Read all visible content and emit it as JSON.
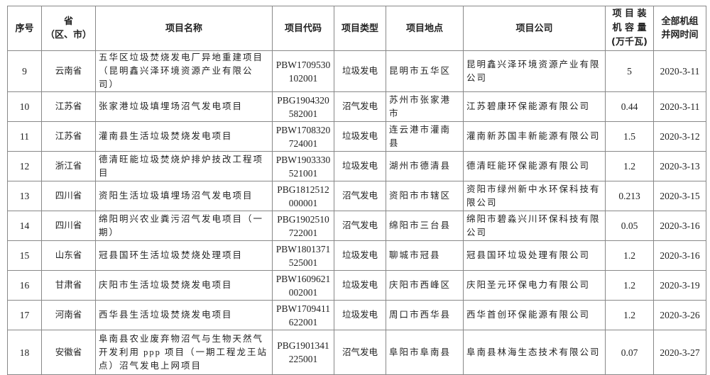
{
  "table": {
    "headers": [
      "序号",
      "省（区、市）",
      "项目名称",
      "项目代码",
      "项目类型",
      "项目地点",
      "项目公司",
      "项目装机容量(万千瓦)",
      "全部机组并网时间"
    ],
    "header_lines": {
      "province": [
        "省",
        "（区、市）"
      ],
      "capacity": [
        "项 目 装",
        "机 容 量",
        "(万千瓦)"
      ],
      "time": [
        "全部机组",
        "并网时间"
      ]
    },
    "rows": [
      {
        "no": "9",
        "province": "云南省",
        "name": "五华区垃圾焚烧发电厂异地重建项目（昆明鑫兴泽环境资源产业有限公司）",
        "code": "PBW1709530102001",
        "type": "垃圾发电",
        "location": "昆明市五华区",
        "company": "昆明鑫兴泽环境资源产业有限公司",
        "capacity": "5",
        "time": "2020-3-11"
      },
      {
        "no": "10",
        "province": "江苏省",
        "name": "张家港垃圾填埋场沼气发电项目",
        "code": "PBG1904320582001",
        "type": "沼气发电",
        "location": "苏州市张家港市",
        "company": "江苏碧康环保能源有限公司",
        "capacity": "0.44",
        "time": "2020-3-11"
      },
      {
        "no": "11",
        "province": "江苏省",
        "name": "灌南县生活垃圾焚烧发电项目",
        "code": "PBW1708320724001",
        "type": "垃圾发电",
        "location": "连云港市灌南县",
        "company": "灌南新苏国丰新能源有限公司",
        "capacity": "1.5",
        "time": "2020-3-12"
      },
      {
        "no": "12",
        "province": "浙江省",
        "name": "德清旺能垃圾焚烧炉排炉技改工程项目",
        "code": "PBW1903330521001",
        "type": "垃圾发电",
        "location": "湖州市德清县",
        "company": "德清旺能环保能源有限公司",
        "capacity": "1.2",
        "time": "2020-3-13"
      },
      {
        "no": "13",
        "province": "四川省",
        "name": "资阳生活垃圾填埋场沼气发电项目",
        "code": "PBG1812512000001",
        "type": "沼气发电",
        "location": "资阳市市辖区",
        "company": "资阳市绿州新中水环保科技有限公司",
        "capacity": "0.213",
        "time": "2020-3-15"
      },
      {
        "no": "14",
        "province": "四川省",
        "name": "绵阳明兴农业粪污沼气发电项目（一期）",
        "code": "PBG1902510722001",
        "type": "沼气发电",
        "location": "绵阳市三台县",
        "company": "绵阳市碧淼兴川环保科技有限公司",
        "capacity": "0.05",
        "time": "2020-3-16"
      },
      {
        "no": "15",
        "province": "山东省",
        "name": "冠县国环生活垃圾焚烧处理项目",
        "code": "PBW1801371525001",
        "type": "垃圾发电",
        "location": "聊城市冠县",
        "company": "冠县国环垃圾处理有限公司",
        "capacity": "1.2",
        "time": "2020-3-16"
      },
      {
        "no": "16",
        "province": "甘肃省",
        "name": "庆阳市生活垃圾焚烧发电项目",
        "code": "PBW1609621002001",
        "type": "垃圾发电",
        "location": "庆阳市西峰区",
        "company": "庆阳圣元环保电力有限公司",
        "capacity": "1.2",
        "time": "2020-3-19"
      },
      {
        "no": "17",
        "province": "河南省",
        "name": "西华县生活垃圾焚烧发电项目",
        "code": "PBW1709411622001",
        "type": "垃圾发电",
        "location": "周口市西华县",
        "company": "西华首创环保能源有限公司",
        "capacity": "1.2",
        "time": "2020-3-26"
      },
      {
        "no": "18",
        "province": "安徽省",
        "name": "阜南县农业废弃物沼气与生物天然气开发利用 ppp 项目（一期工程龙王站点）沼气发电上网项目",
        "code": "PBG1901341225001",
        "type": "沼气发电",
        "location": "阜阳市阜南县",
        "company": "阜南县林海生态技术有限公司",
        "capacity": "0.07",
        "time": "2020-3-27"
      }
    ]
  }
}
